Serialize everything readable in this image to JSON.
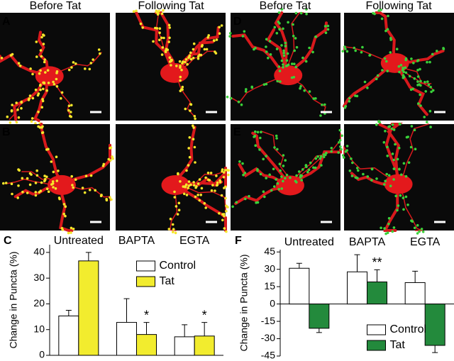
{
  "column_headers": [
    "Before Tat",
    "Following Tat",
    "Before Tat",
    "Following Tat"
  ],
  "panel_labels": [
    "A",
    "B",
    "C",
    "D",
    "E",
    "F"
  ],
  "chart_data": [
    {
      "type": "bar",
      "y_label": "Change in Puncta (%)",
      "categories": [
        "Untreated",
        "BAPTA",
        "EGTA"
      ],
      "series": [
        {
          "name": "Control",
          "color": "#ffffff",
          "values": [
            15.3,
            12.8,
            7.2
          ],
          "errors": [
            2.2,
            9.2,
            4.7
          ]
        },
        {
          "name": "Tat",
          "color": "#f2ec2e",
          "values": [
            36.7,
            8.1,
            7.5
          ],
          "errors": [
            3.3,
            4.7,
            5.3
          ]
        }
      ],
      "annotations": [
        {
          "text": "*",
          "category": "BAPTA",
          "series": "Tat"
        },
        {
          "text": "*",
          "category": "EGTA",
          "series": "Tat"
        }
      ],
      "ylim": [
        0,
        43
      ],
      "yticks": [
        0,
        10,
        20,
        30,
        40
      ],
      "legend": "upper right"
    },
    {
      "type": "bar",
      "y_label": "Change in Puncta (%)",
      "categories": [
        "Untreated",
        "BAPTA",
        "EGTA"
      ],
      "series": [
        {
          "name": "Control",
          "color": "#ffffff",
          "values": [
            30.9,
            27.8,
            18.5
          ],
          "errors": [
            4.3,
            14.8,
            9.9
          ]
        },
        {
          "name": "Tat",
          "color": "#238a3c",
          "values": [
            -21,
            19.1,
            -35.8
          ],
          "errors": [
            3.7,
            10.5,
            6.2
          ]
        }
      ],
      "annotations": [
        {
          "text": "**",
          "category": "BAPTA",
          "series": "Tat"
        }
      ],
      "ylim": [
        -45,
        47
      ],
      "yticks": [
        -45,
        -30,
        -15,
        0,
        15,
        30,
        45
      ],
      "legend": "lower right"
    }
  ]
}
